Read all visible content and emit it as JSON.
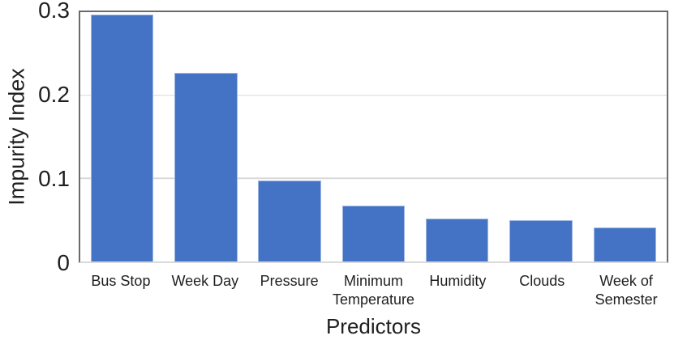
{
  "chart_data": {
    "type": "bar",
    "title": "",
    "categories": [
      "Bus Stop",
      "Week Day",
      "Pressure",
      "Minimum Temperature",
      "Humidity",
      "Clouds",
      "Week of Semester"
    ],
    "values": [
      0.297,
      0.227,
      0.097,
      0.067,
      0.052,
      0.05,
      0.041
    ],
    "xlabel": "Predictors",
    "ylabel": "Impurity Index",
    "ylim": [
      0,
      0.3
    ],
    "yticks": [
      {
        "value": 0,
        "label": "0"
      },
      {
        "value": 0.1,
        "label": "0.1"
      },
      {
        "value": 0.2,
        "label": "0.2"
      },
      {
        "value": 0.3,
        "label": "0.3"
      }
    ],
    "grid": "horizontal",
    "legend": false
  },
  "colors": {
    "bar_fill": "#4472C4",
    "bar_edge": "#9db8e4",
    "plot_border": "#6a6a6a",
    "gridline": "#d9d9d9",
    "text": "#1f1f1f"
  }
}
